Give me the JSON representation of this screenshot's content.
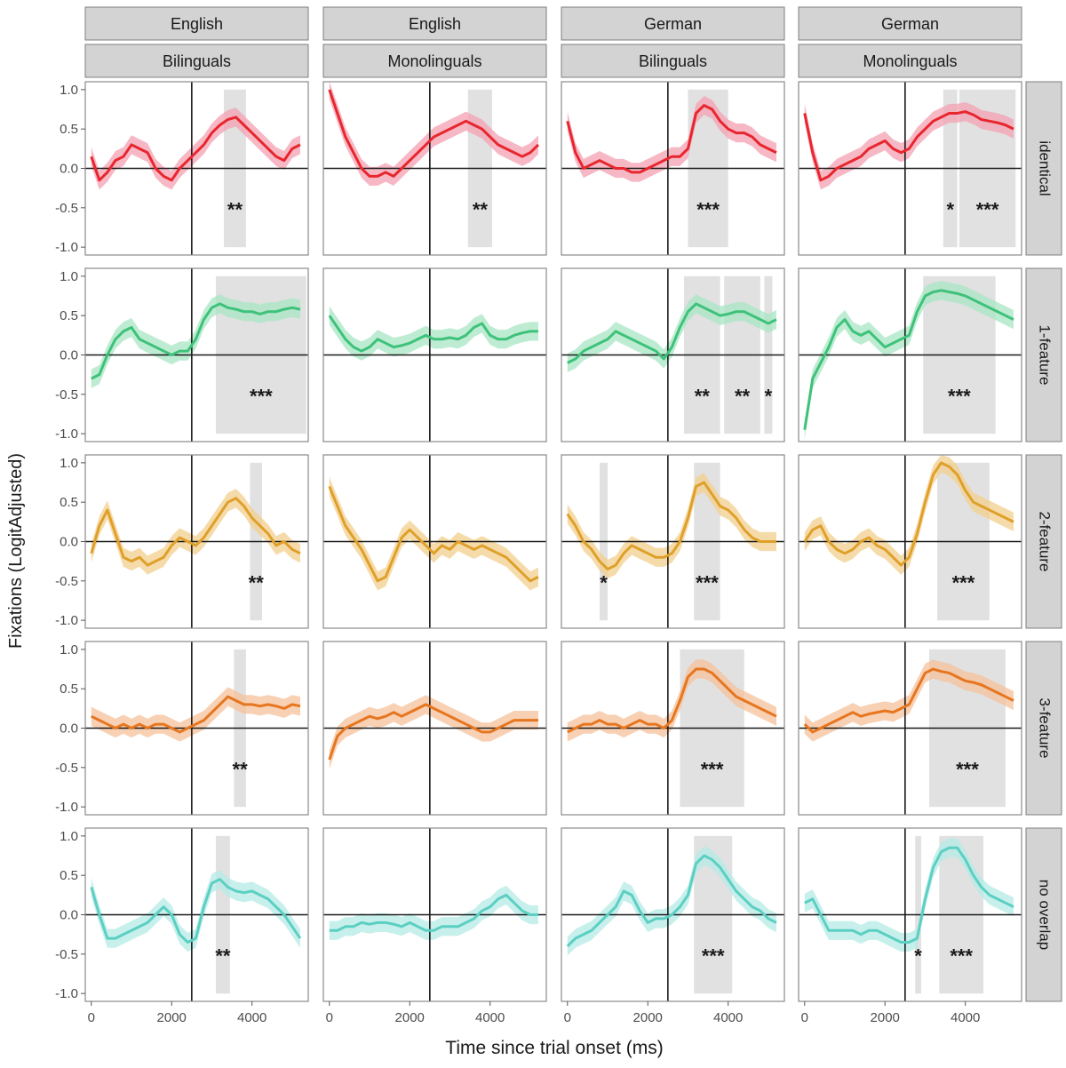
{
  "chart_data": {
    "type": "line",
    "ylabel": "Fixations (LogitAdjusted)",
    "xlabel": "Time since trial onset (ms)",
    "xlim": [
      -150,
      5400
    ],
    "ylim": [
      -1.1,
      1.1
    ],
    "xticks": [
      0,
      2000,
      4000
    ],
    "yticks": [
      -1.0,
      -0.5,
      0.0,
      0.5,
      1.0
    ],
    "ytick_labels": [
      "-1.0",
      "-0.5",
      "0.0",
      "0.5",
      "1.0"
    ],
    "vline_x": 2500,
    "hline_y": 0,
    "grid": false,
    "col_strips": [
      {
        "language": "English",
        "group": "Bilinguals"
      },
      {
        "language": "English",
        "group": "Monolinguals"
      },
      {
        "language": "German",
        "group": "Bilinguals"
      },
      {
        "language": "German",
        "group": "Monolinguals"
      }
    ],
    "row_strips": [
      "identical",
      "1-feature",
      "2-feature",
      "3-feature",
      "no overlap"
    ],
    "row_colors": [
      "#e8262e",
      "#3ec27a",
      "#dfa02a",
      "#e6761f",
      "#5ccfc3"
    ],
    "row_fill_colors": [
      "#f4a0b1",
      "#a8e6c4",
      "#f3cf8e",
      "#f6c09a",
      "#b4ebe5"
    ],
    "time_points": [
      0,
      200,
      400,
      600,
      800,
      1000,
      1200,
      1400,
      1600,
      1800,
      2000,
      2200,
      2400,
      2600,
      2800,
      3000,
      3200,
      3400,
      3600,
      3800,
      4000,
      4200,
      4400,
      4600,
      4800,
      5000,
      5200
    ],
    "panels": [
      {
        "row": 0,
        "col": 0,
        "y": [
          0.15,
          -0.15,
          -0.05,
          0.1,
          0.15,
          0.3,
          0.25,
          0.2,
          0.0,
          -0.1,
          -0.15,
          0.0,
          0.1,
          0.2,
          0.3,
          0.45,
          0.55,
          0.62,
          0.65,
          0.55,
          0.45,
          0.35,
          0.25,
          0.15,
          0.1,
          0.25,
          0.3
        ],
        "sig": [
          {
            "x0": 3300,
            "x1": 3850,
            "label": "**"
          }
        ]
      },
      {
        "row": 0,
        "col": 1,
        "y": [
          1.0,
          0.7,
          0.4,
          0.2,
          0.0,
          -0.1,
          -0.1,
          -0.05,
          -0.1,
          0.0,
          0.1,
          0.2,
          0.3,
          0.4,
          0.45,
          0.5,
          0.55,
          0.6,
          0.55,
          0.5,
          0.4,
          0.3,
          0.25,
          0.2,
          0.15,
          0.2,
          0.3
        ],
        "sig": [
          {
            "x0": 3450,
            "x1": 4050,
            "label": "**"
          }
        ]
      },
      {
        "row": 0,
        "col": 2,
        "y": [
          0.6,
          0.2,
          0.0,
          0.05,
          0.1,
          0.05,
          0.0,
          0.0,
          -0.05,
          -0.05,
          0.0,
          0.05,
          0.1,
          0.15,
          0.15,
          0.25,
          0.7,
          0.8,
          0.75,
          0.6,
          0.5,
          0.45,
          0.45,
          0.4,
          0.3,
          0.25,
          0.2
        ],
        "sig": [
          {
            "x0": 3000,
            "x1": 4000,
            "label": "***"
          }
        ]
      },
      {
        "row": 0,
        "col": 3,
        "y": [
          0.7,
          0.2,
          -0.15,
          -0.1,
          0.0,
          0.05,
          0.1,
          0.15,
          0.25,
          0.3,
          0.35,
          0.25,
          0.2,
          0.25,
          0.4,
          0.5,
          0.6,
          0.65,
          0.7,
          0.7,
          0.72,
          0.68,
          0.62,
          0.6,
          0.58,
          0.55,
          0.5
        ],
        "sig": [
          {
            "x0": 3450,
            "x1": 3800,
            "label": "*"
          },
          {
            "x0": 3850,
            "x1": 5250,
            "label": "***"
          }
        ]
      },
      {
        "row": 1,
        "col": 0,
        "y": [
          -0.3,
          -0.25,
          0.0,
          0.2,
          0.3,
          0.35,
          0.2,
          0.15,
          0.1,
          0.05,
          0.0,
          0.05,
          0.05,
          0.2,
          0.45,
          0.6,
          0.65,
          0.6,
          0.58,
          0.55,
          0.55,
          0.52,
          0.55,
          0.55,
          0.58,
          0.6,
          0.58
        ],
        "sig": [
          {
            "x0": 3100,
            "x1": 5350,
            "label": "***"
          }
        ]
      },
      {
        "row": 1,
        "col": 1,
        "y": [
          0.5,
          0.35,
          0.2,
          0.1,
          0.05,
          0.1,
          0.2,
          0.15,
          0.1,
          0.12,
          0.15,
          0.2,
          0.25,
          0.2,
          0.2,
          0.22,
          0.2,
          0.25,
          0.35,
          0.4,
          0.25,
          0.2,
          0.2,
          0.25,
          0.28,
          0.3,
          0.3
        ],
        "sig": []
      },
      {
        "row": 1,
        "col": 2,
        "y": [
          -0.1,
          -0.05,
          0.05,
          0.1,
          0.15,
          0.2,
          0.3,
          0.25,
          0.2,
          0.15,
          0.1,
          0.05,
          -0.05,
          0.1,
          0.35,
          0.55,
          0.65,
          0.6,
          0.55,
          0.5,
          0.52,
          0.55,
          0.55,
          0.5,
          0.45,
          0.4,
          0.45
        ],
        "sig": [
          {
            "x0": 2900,
            "x1": 3800,
            "label": "**"
          },
          {
            "x0": 3900,
            "x1": 4800,
            "label": "**"
          },
          {
            "x0": 4900,
            "x1": 5100,
            "label": "*"
          }
        ]
      },
      {
        "row": 1,
        "col": 3,
        "y": [
          -0.95,
          -0.3,
          -0.1,
          0.1,
          0.35,
          0.45,
          0.3,
          0.25,
          0.3,
          0.2,
          0.1,
          0.15,
          0.2,
          0.25,
          0.55,
          0.75,
          0.8,
          0.82,
          0.8,
          0.78,
          0.75,
          0.7,
          0.65,
          0.6,
          0.55,
          0.5,
          0.45
        ],
        "sig": [
          {
            "x0": 2950,
            "x1": 4750,
            "label": "***"
          }
        ]
      },
      {
        "row": 2,
        "col": 0,
        "y": [
          -0.15,
          0.2,
          0.4,
          0.1,
          -0.2,
          -0.25,
          -0.2,
          -0.3,
          -0.25,
          -0.2,
          -0.05,
          0.05,
          0.0,
          -0.05,
          0.05,
          0.2,
          0.35,
          0.5,
          0.55,
          0.45,
          0.3,
          0.2,
          0.1,
          -0.05,
          0.0,
          -0.1,
          -0.15
        ],
        "sig": [
          {
            "x0": 3950,
            "x1": 4250,
            "label": "**"
          }
        ]
      },
      {
        "row": 2,
        "col": 1,
        "y": [
          0.7,
          0.45,
          0.2,
          0.05,
          -0.1,
          -0.3,
          -0.5,
          -0.45,
          -0.2,
          0.05,
          0.15,
          0.05,
          -0.05,
          -0.15,
          -0.05,
          -0.1,
          0.0,
          -0.05,
          -0.1,
          -0.05,
          -0.1,
          -0.15,
          -0.2,
          -0.3,
          -0.4,
          -0.5,
          -0.45
        ],
        "sig": []
      },
      {
        "row": 2,
        "col": 2,
        "y": [
          0.35,
          0.2,
          0.0,
          -0.1,
          -0.25,
          -0.35,
          -0.3,
          -0.15,
          -0.05,
          -0.1,
          -0.15,
          -0.2,
          -0.2,
          -0.15,
          0.0,
          0.3,
          0.7,
          0.75,
          0.6,
          0.45,
          0.4,
          0.3,
          0.15,
          0.05,
          0.0,
          0.0,
          0.0
        ],
        "sig": [
          {
            "x0": 800,
            "x1": 1000,
            "label": "*"
          },
          {
            "x0": 3150,
            "x1": 3800,
            "label": "***"
          }
        ]
      },
      {
        "row": 2,
        "col": 3,
        "y": [
          0.0,
          0.15,
          0.2,
          0.0,
          -0.1,
          -0.15,
          -0.1,
          0.0,
          0.05,
          -0.05,
          -0.1,
          -0.2,
          -0.3,
          -0.2,
          0.1,
          0.5,
          0.85,
          1.0,
          0.95,
          0.85,
          0.65,
          0.5,
          0.45,
          0.4,
          0.35,
          0.3,
          0.25
        ],
        "sig": [
          {
            "x0": 3300,
            "x1": 4600,
            "label": "***"
          }
        ]
      },
      {
        "row": 3,
        "col": 0,
        "y": [
          0.15,
          0.1,
          0.05,
          0.0,
          0.05,
          0.0,
          0.05,
          0.0,
          0.05,
          0.05,
          0.0,
          -0.05,
          0.0,
          0.05,
          0.1,
          0.2,
          0.3,
          0.4,
          0.35,
          0.3,
          0.3,
          0.28,
          0.3,
          0.28,
          0.25,
          0.3,
          0.28
        ],
        "sig": [
          {
            "x0": 3550,
            "x1": 3850,
            "label": "**"
          }
        ]
      },
      {
        "row": 3,
        "col": 1,
        "y": [
          -0.4,
          -0.1,
          0.0,
          0.05,
          0.1,
          0.15,
          0.12,
          0.15,
          0.2,
          0.15,
          0.2,
          0.25,
          0.3,
          0.25,
          0.2,
          0.15,
          0.1,
          0.05,
          0.0,
          -0.05,
          -0.05,
          0.0,
          0.05,
          0.1,
          0.1,
          0.1,
          0.1
        ],
        "sig": []
      },
      {
        "row": 3,
        "col": 2,
        "y": [
          -0.05,
          0.0,
          0.05,
          0.05,
          0.1,
          0.05,
          0.05,
          0.0,
          0.05,
          0.1,
          0.05,
          0.05,
          0.0,
          0.1,
          0.35,
          0.65,
          0.75,
          0.75,
          0.7,
          0.6,
          0.5,
          0.4,
          0.35,
          0.3,
          0.25,
          0.2,
          0.15
        ],
        "sig": [
          {
            "x0": 2800,
            "x1": 4400,
            "label": "***"
          }
        ]
      },
      {
        "row": 3,
        "col": 3,
        "y": [
          0.05,
          -0.05,
          0.0,
          0.05,
          0.1,
          0.15,
          0.2,
          0.15,
          0.18,
          0.2,
          0.22,
          0.2,
          0.25,
          0.3,
          0.5,
          0.7,
          0.75,
          0.72,
          0.7,
          0.65,
          0.6,
          0.58,
          0.55,
          0.5,
          0.45,
          0.4,
          0.35
        ],
        "sig": [
          {
            "x0": 3100,
            "x1": 5000,
            "label": "***"
          }
        ]
      },
      {
        "row": 4,
        "col": 0,
        "y": [
          0.35,
          0.0,
          -0.3,
          -0.3,
          -0.25,
          -0.2,
          -0.15,
          -0.1,
          0.0,
          0.1,
          0.0,
          -0.25,
          -0.35,
          -0.3,
          0.1,
          0.4,
          0.45,
          0.35,
          0.3,
          0.28,
          0.3,
          0.25,
          0.2,
          0.1,
          0.0,
          -0.15,
          -0.3
        ],
        "sig": [
          {
            "x0": 3100,
            "x1": 3450,
            "label": "**"
          }
        ]
      },
      {
        "row": 4,
        "col": 1,
        "y": [
          -0.2,
          -0.2,
          -0.15,
          -0.15,
          -0.1,
          -0.12,
          -0.1,
          -0.1,
          -0.12,
          -0.15,
          -0.1,
          -0.15,
          -0.2,
          -0.2,
          -0.15,
          -0.15,
          -0.15,
          -0.1,
          -0.05,
          0.05,
          0.1,
          0.2,
          0.25,
          0.15,
          0.05,
          0.0,
          0.0
        ],
        "sig": []
      },
      {
        "row": 4,
        "col": 2,
        "y": [
          -0.4,
          -0.3,
          -0.25,
          -0.2,
          -0.1,
          0.0,
          0.1,
          0.3,
          0.25,
          0.05,
          -0.1,
          -0.05,
          -0.05,
          0.0,
          0.1,
          0.25,
          0.65,
          0.75,
          0.7,
          0.6,
          0.45,
          0.3,
          0.2,
          0.1,
          0.05,
          -0.05,
          -0.1
        ],
        "sig": [
          {
            "x0": 3150,
            "x1": 4100,
            "label": "***"
          }
        ]
      },
      {
        "row": 4,
        "col": 3,
        "y": [
          0.15,
          0.2,
          0.0,
          -0.2,
          -0.2,
          -0.2,
          -0.2,
          -0.25,
          -0.2,
          -0.2,
          -0.25,
          -0.3,
          -0.35,
          -0.35,
          -0.3,
          0.2,
          0.6,
          0.8,
          0.85,
          0.85,
          0.7,
          0.5,
          0.35,
          0.25,
          0.2,
          0.15,
          0.1
        ],
        "sig": [
          {
            "x0": 2750,
            "x1": 2900,
            "label": "*"
          },
          {
            "x0": 3350,
            "x1": 4450,
            "label": "***"
          }
        ]
      }
    ]
  }
}
